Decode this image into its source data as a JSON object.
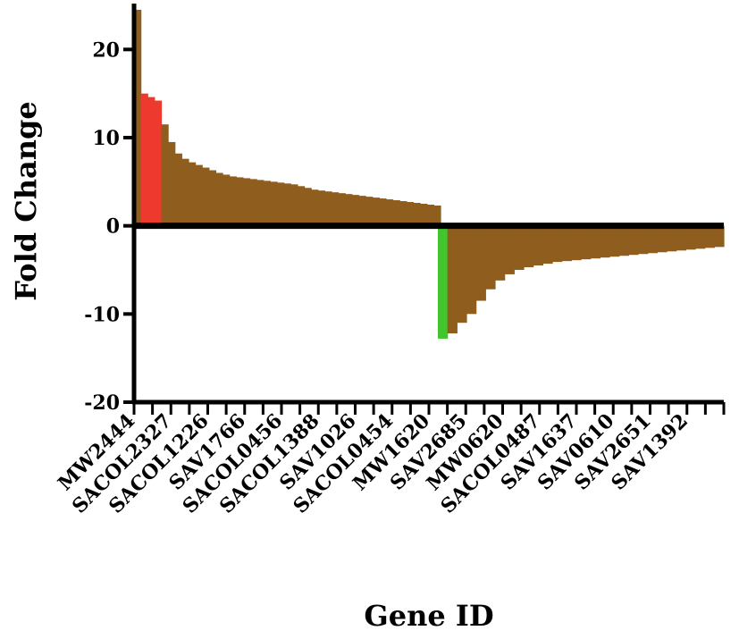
{
  "chart_data": {
    "type": "bar",
    "title": "",
    "xlabel": "Gene ID",
    "ylabel": "Fold Change",
    "ylim": [
      -20,
      25
    ],
    "yticks": [
      -20,
      -10,
      0,
      10,
      20
    ],
    "grid": false,
    "legend": "none",
    "x_tick_labels": [
      "MW2444",
      "SACOL2327",
      "SACOL1226",
      "SAV1766",
      "SACOL0456",
      "SACOL1388",
      "SAV1026",
      "SACOL0454",
      "MW1620",
      "SAV2685",
      "MW0620",
      "SACOL0487",
      "SAV1637",
      "SAV0610",
      "SAV2651",
      "SAV1392"
    ],
    "colors": {
      "bar": "#8f5e1f",
      "up_highlight": "#ee3a2e",
      "down_highlight": "#43c62d",
      "axis": "#000000"
    },
    "series": [
      {
        "up_regulated_fold_change": [
          24.5,
          15.0,
          14.6,
          14.2,
          11.5,
          9.5,
          8.2,
          7.6,
          7.2,
          6.9,
          6.6,
          6.3,
          6.0,
          5.8,
          5.6,
          5.5,
          5.4,
          5.3,
          5.2,
          5.1,
          5.0,
          4.9,
          4.8,
          4.7,
          4.5,
          4.3,
          4.1,
          4.0,
          3.9,
          3.8,
          3.7,
          3.6,
          3.5,
          3.4,
          3.3,
          3.2,
          3.1,
          3.0,
          2.9,
          2.8,
          2.7,
          2.6,
          2.5,
          2.4,
          2.3
        ],
        "down_regulated_fold_change": [
          -12.8,
          -12.2,
          -11.0,
          -10.0,
          -8.5,
          -7.2,
          -6.2,
          -5.5,
          -5.0,
          -4.7,
          -4.5,
          -4.3,
          -4.1,
          -4.0,
          -3.9,
          -3.8,
          -3.7,
          -3.6,
          -3.5,
          -3.4,
          -3.3,
          -3.2,
          -3.1,
          -3.0,
          -2.9,
          -2.8,
          -2.7,
          -2.6,
          -2.5,
          -2.4
        ]
      }
    ]
  }
}
